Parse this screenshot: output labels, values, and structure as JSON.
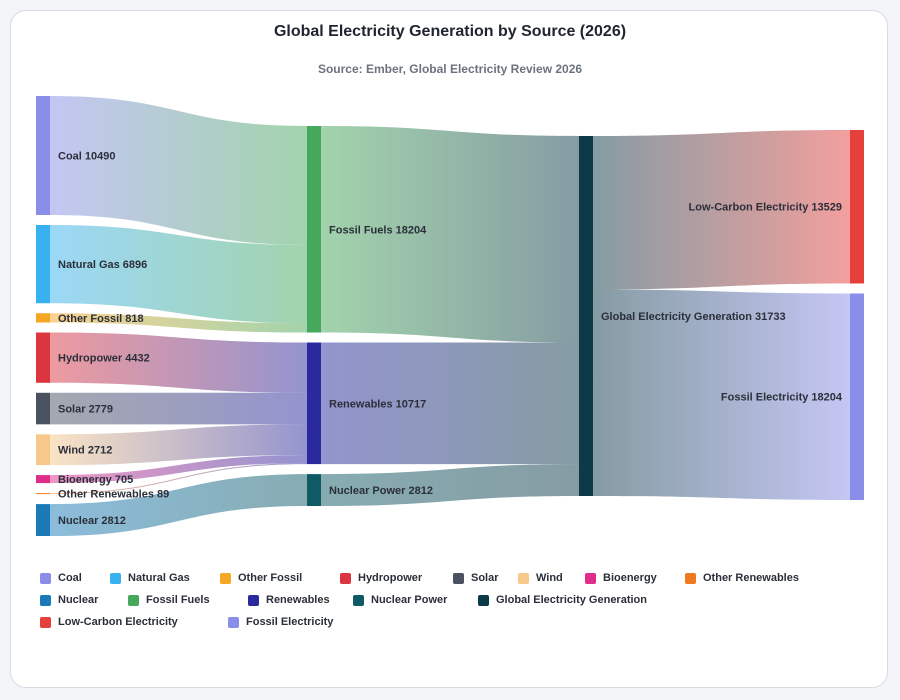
{
  "title": "Global Electricity Generation by Source (2026)",
  "subtitle": "Source: Ember, Global Electricity Review 2026",
  "chart_data": {
    "type": "sankey",
    "nodes": [
      {
        "id": "coal",
        "label": "Coal",
        "value": 10490,
        "color": "#8b8ee8",
        "column": 0
      },
      {
        "id": "gas",
        "label": "Natural Gas",
        "value": 6896,
        "color": "#38b1f0",
        "column": 0
      },
      {
        "id": "ofossil",
        "label": "Other Fossil",
        "value": 818,
        "color": "#f5a623",
        "column": 0
      },
      {
        "id": "hydro",
        "label": "Hydropower",
        "value": 4432,
        "color": "#dc3540",
        "column": 0
      },
      {
        "id": "solar",
        "label": "Solar",
        "value": 2779,
        "color": "#4a5260",
        "column": 0
      },
      {
        "id": "wind",
        "label": "Wind",
        "value": 2712,
        "color": "#f6c98a",
        "column": 0
      },
      {
        "id": "bio",
        "label": "Bioenergy",
        "value": 705,
        "color": "#de2e8a",
        "column": 0
      },
      {
        "id": "oren",
        "label": "Other Renewables",
        "value": 89,
        "color": "#f07a20",
        "column": 0
      },
      {
        "id": "nuclear",
        "label": "Nuclear",
        "value": 2812,
        "color": "#1a7ab8",
        "column": 0
      },
      {
        "id": "fossil",
        "label": "Fossil Fuels",
        "value": 18204,
        "color": "#46a85a",
        "column": 1
      },
      {
        "id": "renew",
        "label": "Renewables",
        "value": 10717,
        "color": "#2a2a9e",
        "column": 1
      },
      {
        "id": "npower",
        "label": "Nuclear Power",
        "value": 2812,
        "color": "#0f5a66",
        "column": 1
      },
      {
        "id": "global",
        "label": "Global Electricity Generation",
        "value": 31733,
        "color": "#0d3a48",
        "column": 2
      },
      {
        "id": "lowc",
        "label": "Low-Carbon Electricity",
        "value": 13529,
        "color": "#e5403c",
        "column": 3
      },
      {
        "id": "fossilE",
        "label": "Fossil Electricity",
        "value": 18204,
        "color": "#8b8ee8",
        "column": 3
      }
    ],
    "links": [
      {
        "source": "coal",
        "target": "fossil",
        "value": 10490
      },
      {
        "source": "gas",
        "target": "fossil",
        "value": 6896
      },
      {
        "source": "ofossil",
        "target": "fossil",
        "value": 818
      },
      {
        "source": "hydro",
        "target": "renew",
        "value": 4432
      },
      {
        "source": "solar",
        "target": "renew",
        "value": 2779
      },
      {
        "source": "wind",
        "target": "renew",
        "value": 2712
      },
      {
        "source": "bio",
        "target": "renew",
        "value": 705
      },
      {
        "source": "oren",
        "target": "renew",
        "value": 89
      },
      {
        "source": "nuclear",
        "target": "npower",
        "value": 2812
      },
      {
        "source": "fossil",
        "target": "global",
        "value": 18204
      },
      {
        "source": "renew",
        "target": "global",
        "value": 10717
      },
      {
        "source": "npower",
        "target": "global",
        "value": 2812
      },
      {
        "source": "global",
        "target": "lowc",
        "value": 13529
      },
      {
        "source": "global",
        "target": "fossilE",
        "value": 18204
      }
    ],
    "legend": [
      {
        "label": "Coal",
        "color": "#8b8ee8"
      },
      {
        "label": "Natural Gas",
        "color": "#38b1f0"
      },
      {
        "label": "Other Fossil",
        "color": "#f5a623"
      },
      {
        "label": "Hydropower",
        "color": "#dc3540"
      },
      {
        "label": "Solar",
        "color": "#4a5260"
      },
      {
        "label": "Wind",
        "color": "#f6c98a"
      },
      {
        "label": "Bioenergy",
        "color": "#de2e8a"
      },
      {
        "label": "Other Renewables",
        "color": "#f07a20"
      },
      {
        "label": "Nuclear",
        "color": "#1a7ab8"
      },
      {
        "label": "Fossil Fuels",
        "color": "#46a85a"
      },
      {
        "label": "Renewables",
        "color": "#2a2a9e"
      },
      {
        "label": "Nuclear Power",
        "color": "#0f5a66"
      },
      {
        "label": "Global Electricity Generation",
        "color": "#0d3a48"
      },
      {
        "label": "Low-Carbon Electricity",
        "color": "#e5403c"
      },
      {
        "label": "Fossil Electricity",
        "color": "#8b8ee8"
      }
    ]
  }
}
